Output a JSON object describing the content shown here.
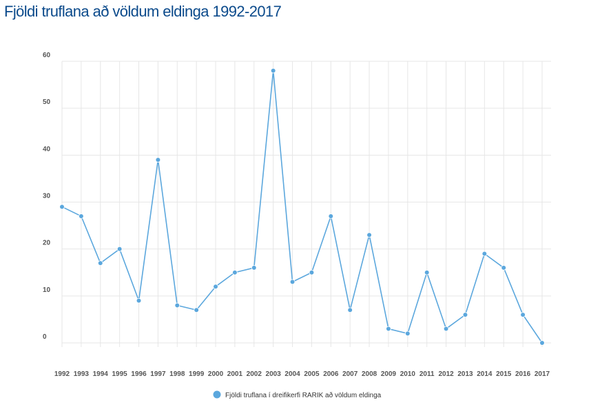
{
  "title": "Fjöldi truflana að völdum eldinga 1992-2017",
  "chart_data": {
    "type": "line",
    "title": "Fjöldi truflana að völdum eldinga 1992-2017",
    "xlabel": "",
    "ylabel": "",
    "categories": [
      "1992",
      "1993",
      "1994",
      "1995",
      "1996",
      "1997",
      "1998",
      "1999",
      "2000",
      "2001",
      "2002",
      "2003",
      "2004",
      "2005",
      "2006",
      "2007",
      "2008",
      "2009",
      "2010",
      "2011",
      "2012",
      "2013",
      "2014",
      "2015",
      "2016",
      "2017"
    ],
    "series": [
      {
        "name": "Fjöldi truflana í dreifikerfi RARIK að völdum eldinga",
        "color": "#5ba7dd",
        "values": [
          29,
          27,
          17,
          20,
          9,
          39,
          8,
          7,
          12,
          15,
          16,
          58,
          13,
          15,
          27,
          7,
          23,
          3,
          2,
          15,
          3,
          6,
          19,
          16,
          6,
          0
        ]
      }
    ],
    "yticks": [
      0,
      10,
      20,
      30,
      40,
      50,
      60
    ],
    "ylim": [
      0,
      60
    ],
    "grid": true,
    "legend_position": "bottom-center",
    "colors": {
      "title": "#0b4a8b",
      "line": "#5ba7dd",
      "grid": "#e6e6e6"
    }
  }
}
